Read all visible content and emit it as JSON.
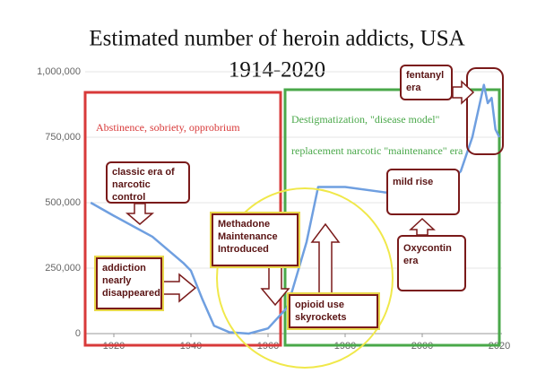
{
  "chart_data": {
    "type": "line",
    "title": "Estimated number of heroin addicts, USA",
    "subtitle": "1914-2020",
    "x": [
      1914,
      1920,
      1930,
      1938,
      1940,
      1943,
      1946,
      1950,
      1955,
      1960,
      1965,
      1970,
      1973,
      1980,
      1990,
      2000,
      2005,
      2010,
      2013,
      2016,
      2017,
      2018,
      2019,
      2020
    ],
    "series": [
      {
        "color": "#6f9fe0",
        "values": [
          500000,
          450000,
          370000,
          270000,
          240000,
          130000,
          30000,
          5000,
          0,
          20000,
          100000,
          350000,
          560000,
          560000,
          540000,
          525000,
          550000,
          620000,
          750000,
          950000,
          880000,
          900000,
          780000,
          750000
        ]
      }
    ],
    "xlim": [
      1913,
      2021
    ],
    "xticks": [
      1920,
      1940,
      1960,
      1980,
      2000,
      2020
    ],
    "ylim": [
      0,
      1000000
    ],
    "yticks": [
      0,
      {
        "value": 250000,
        "label": "250,000"
      },
      {
        "value": 500000,
        "label": "500,000"
      },
      {
        "value": 750000,
        "label": "750,000"
      },
      {
        "value": 1000000,
        "label": "1,000,000"
      }
    ],
    "grid": true,
    "annotations": [
      "Abstinence, sobriety, opprobrium",
      "Destigmatization, \"disease model\"",
      "replacement narcotic \"maintenance\" era",
      "classic era of narcotic control",
      "addiction nearly disappeared",
      "Methadone Maintenance Introduced",
      "opioid use skyrockets",
      "mild rise",
      "Oxycontin era",
      "fentanyl era"
    ]
  }
}
